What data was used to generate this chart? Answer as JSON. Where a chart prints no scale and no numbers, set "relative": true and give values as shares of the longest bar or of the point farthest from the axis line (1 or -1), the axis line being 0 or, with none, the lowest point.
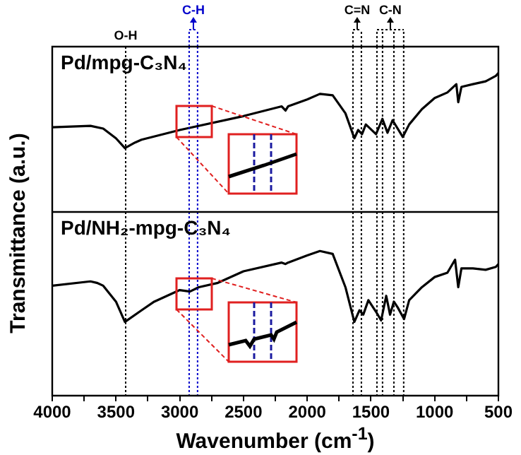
{
  "chart_data": [
    {
      "type": "line",
      "title": "Pd/mpg-C₃N₄",
      "ylabel": "Transmittance (a.u.)",
      "relative": true,
      "marker": "none",
      "line_style": "solid",
      "grid": false,
      "legend": false,
      "tick_labels": false,
      "xlim": [
        4000,
        500
      ],
      "series": [
        {
          "color": "#000000",
          "x": [
            4000,
            3700,
            3600,
            3500,
            3430,
            3350,
            3300,
            3000,
            2500,
            2200,
            2170,
            2150,
            2000,
            1900,
            1800,
            1700,
            1630,
            1600,
            1570,
            1540,
            1460,
            1410,
            1370,
            1330,
            1250,
            1200,
            1100,
            1000,
            900,
            830,
            815,
            790,
            700,
            600,
            520,
            500
          ],
          "values": [
            0.61,
            0.62,
            0.6,
            0.53,
            0.46,
            0.5,
            0.52,
            0.59,
            0.69,
            0.76,
            0.73,
            0.76,
            0.81,
            0.85,
            0.84,
            0.71,
            0.53,
            0.59,
            0.56,
            0.63,
            0.56,
            0.67,
            0.57,
            0.66,
            0.54,
            0.63,
            0.74,
            0.82,
            0.86,
            0.92,
            0.79,
            0.9,
            0.92,
            0.94,
            0.98,
            1
          ]
        }
      ],
      "ref_lines": [
        {
          "axis": "x",
          "value": 3424,
          "label": "O-H",
          "color": "#000000",
          "line_style": "dotted"
        },
        {
          "axis": "x",
          "value": 2926,
          "label": "C-H",
          "color": "#0000cc",
          "line_style": "dotted"
        },
        {
          "axis": "x",
          "value": 2860,
          "label": null,
          "color": "#0000cc",
          "line_style": "dotted"
        },
        {
          "axis": "x",
          "value": 1641,
          "label": "C=N",
          "color": "#000000",
          "line_style": "dotted"
        },
        {
          "axis": "x",
          "value": 1575,
          "label": null,
          "color": "#000000",
          "line_style": "dotted"
        },
        {
          "axis": "x",
          "value": 1453,
          "label": "C-N",
          "color": "#000000",
          "line_style": "dotted"
        },
        {
          "axis": "x",
          "value": 1409,
          "label": null,
          "color": "#000000",
          "line_style": "dotted"
        },
        {
          "axis": "x",
          "value": 1320,
          "label": null,
          "color": "#000000",
          "line_style": "dotted"
        },
        {
          "axis": "x",
          "value": 1243,
          "label": null,
          "color": "#000000",
          "line_style": "dotted"
        }
      ]
    },
    {
      "type": "line",
      "title": "Pd/NH₂-mpg-C₃N₄",
      "xlabel": "Wavenumber (cm$^{-1}$)",
      "relative": true,
      "marker": "none",
      "line_style": "solid",
      "grid": false,
      "legend": false,
      "tick_labels": "x",
      "xlim": [
        4000,
        500
      ],
      "xticks": [
        4000,
        {
          "value": 3750,
          "label": null
        },
        3500,
        {
          "value": 3250,
          "label": null
        },
        3000,
        {
          "value": 2750,
          "label": null
        },
        2500,
        {
          "value": 2250,
          "label": null
        },
        2000,
        {
          "value": 1750,
          "label": null
        },
        1500,
        {
          "value": 1250,
          "label": null
        },
        1000,
        {
          "value": 750,
          "label": null
        },
        500
      ],
      "series": [
        {
          "color": "#000000",
          "x": [
            4000,
            3700,
            3650,
            3600,
            3500,
            3430,
            3300,
            3200,
            3000,
            2920,
            2850,
            2700,
            2500,
            2200,
            2170,
            2150,
            2000,
            1900,
            1800,
            1700,
            1630,
            1590,
            1560,
            1520,
            1460,
            1420,
            1380,
            1350,
            1320,
            1290,
            1240,
            1200,
            1100,
            1000,
            900,
            840,
            815,
            790,
            700,
            600,
            520,
            500
          ],
          "values": [
            0.76,
            0.79,
            0.78,
            0.76,
            0.65,
            0.51,
            0.59,
            0.65,
            0.73,
            0.72,
            0.75,
            0.78,
            0.86,
            0.92,
            0.91,
            0.92,
            0.97,
            1,
            0.98,
            0.75,
            0.51,
            0.59,
            0.56,
            0.66,
            0.58,
            0.52,
            0.69,
            0.56,
            0.65,
            0.61,
            0.53,
            0.66,
            0.75,
            0.82,
            0.85,
            0.94,
            0.75,
            0.88,
            0.88,
            0.87,
            0.89,
            0.91
          ]
        }
      ],
      "ref_lines": [
        {
          "axis": "x",
          "value": 3424,
          "label": null,
          "color": "#000000",
          "line_style": "dotted"
        },
        {
          "axis": "x",
          "value": 2926,
          "label": null,
          "color": "#0000cc",
          "line_style": "dotted"
        },
        {
          "axis": "x",
          "value": 2860,
          "label": null,
          "color": "#0000cc",
          "line_style": "dotted"
        },
        {
          "axis": "x",
          "value": 1641,
          "label": null,
          "color": "#000000",
          "line_style": "dotted"
        },
        {
          "axis": "x",
          "value": 1575,
          "label": null,
          "color": "#000000",
          "line_style": "dotted"
        },
        {
          "axis": "x",
          "value": 1453,
          "label": null,
          "color": "#000000",
          "line_style": "dotted"
        },
        {
          "axis": "x",
          "value": 1409,
          "label": null,
          "color": "#000000",
          "line_style": "dotted"
        },
        {
          "axis": "x",
          "value": 1320,
          "label": null,
          "color": "#000000",
          "line_style": "dotted"
        },
        {
          "axis": "x",
          "value": 1243,
          "label": null,
          "color": "#000000",
          "line_style": "dotted"
        }
      ]
    }
  ]
}
